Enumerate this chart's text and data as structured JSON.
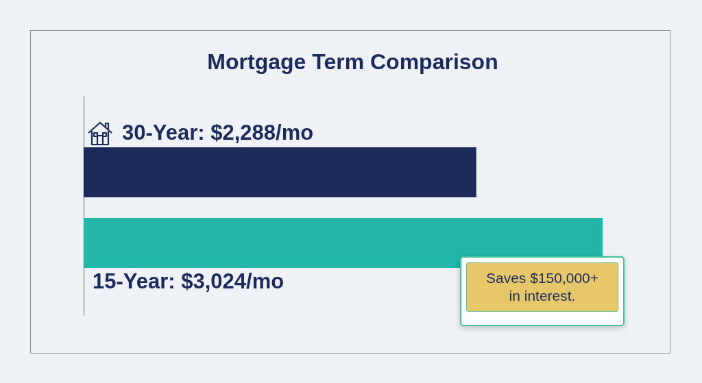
{
  "chart_data": {
    "type": "bar",
    "orientation": "horizontal",
    "title": "Mortgage Term Comparison",
    "categories": [
      null,
      null
    ],
    "values": [
      2288,
      3024
    ],
    "value_labels": [
      "30-Year: $2,288/mo",
      "15-Year: $3,024/mo"
    ],
    "colors": [
      "#1b2a5a",
      "#22b5a8"
    ],
    "annotations": [
      "Saves $150,000+ in interest."
    ]
  }
}
